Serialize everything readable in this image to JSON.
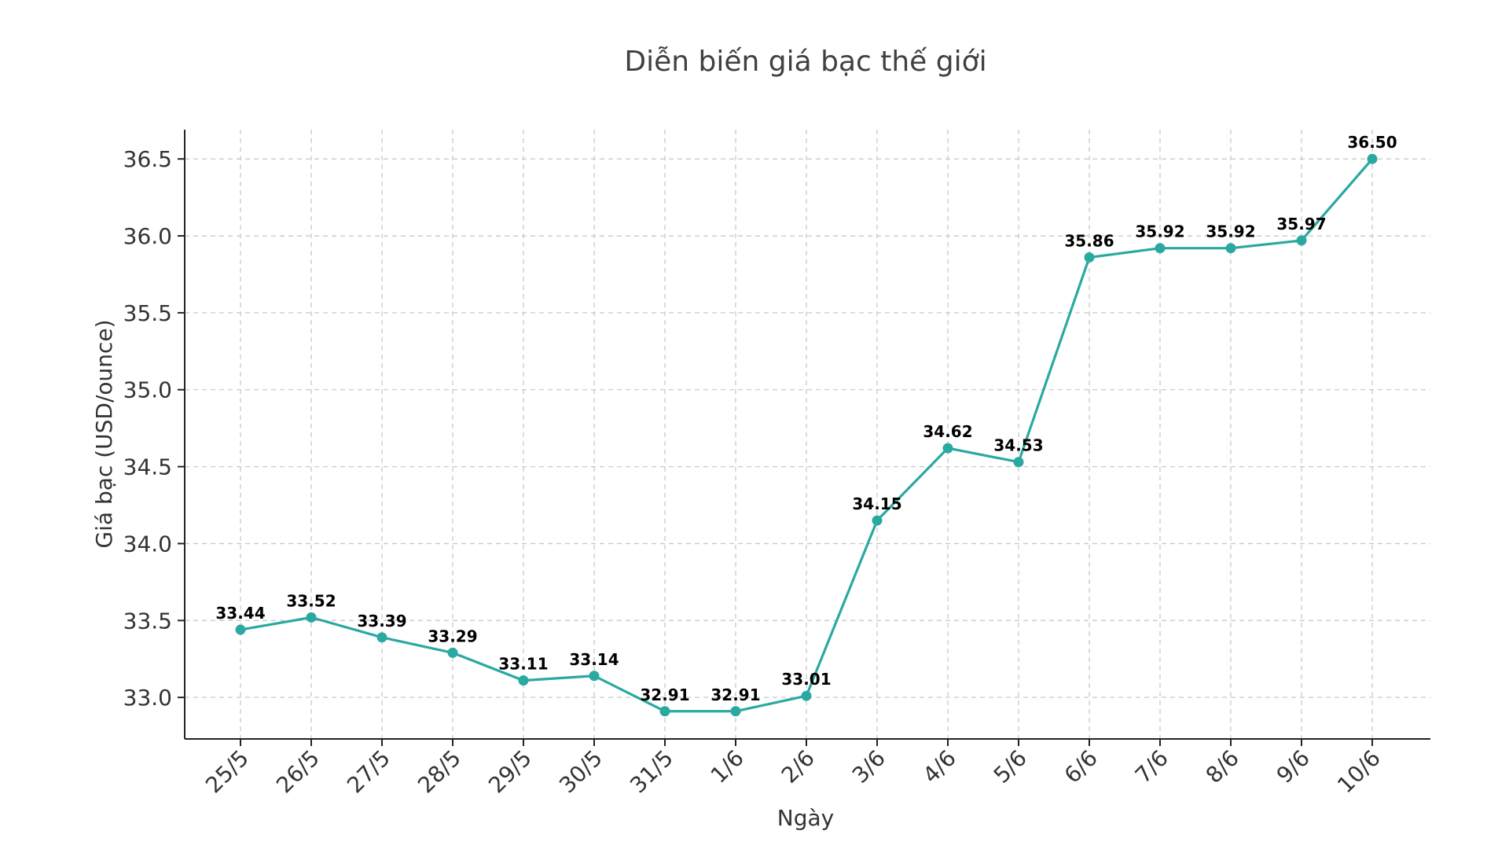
{
  "chart_data": {
    "type": "line",
    "title": "Diễn biến giá bạc thế giới",
    "xlabel": "Ngày",
    "ylabel": "Giá bạc (USD/ounce)",
    "categories": [
      "25/5",
      "26/5",
      "27/5",
      "28/5",
      "29/5",
      "30/5",
      "31/5",
      "1/6",
      "2/6",
      "3/6",
      "4/6",
      "5/6",
      "6/6",
      "7/6",
      "8/6",
      "9/6",
      "10/6"
    ],
    "values": [
      33.44,
      33.52,
      33.39,
      33.29,
      33.11,
      33.14,
      32.91,
      32.91,
      33.01,
      34.15,
      34.62,
      34.53,
      35.86,
      35.92,
      35.92,
      35.97,
      36.5
    ],
    "value_labels": [
      "33.44",
      "33.52",
      "33.39",
      "33.29",
      "33.11",
      "33.14",
      "32.91",
      "32.91",
      "33.01",
      "34.15",
      "34.62",
      "34.53",
      "35.86",
      "35.92",
      "35.92",
      "35.97",
      "36.50"
    ],
    "yticks": [
      33.0,
      33.5,
      34.0,
      34.5,
      35.0,
      35.5,
      36.0,
      36.5
    ],
    "ytick_labels": [
      "33.0",
      "33.5",
      "34.0",
      "34.5",
      "35.0",
      "35.5",
      "36.0",
      "36.5"
    ],
    "ylim": [
      32.73,
      36.69
    ],
    "grid": true,
    "line_color": "#2aa9a1",
    "marker": "circle"
  }
}
